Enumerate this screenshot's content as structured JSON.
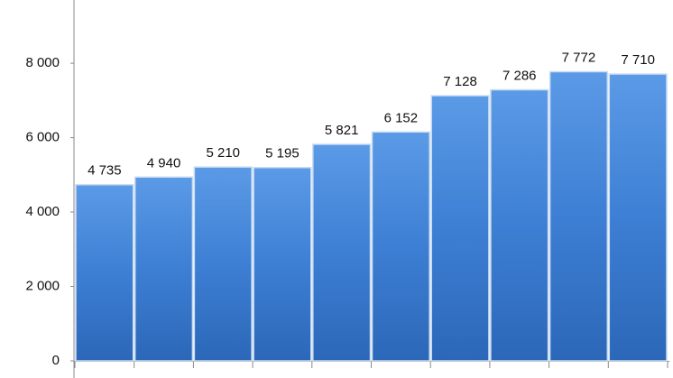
{
  "chart_data": {
    "type": "bar",
    "categories": [
      null,
      null,
      null,
      null,
      null,
      null,
      null,
      null,
      null,
      null
    ],
    "values": [
      4735,
      4940,
      5210,
      5195,
      5821,
      6152,
      7128,
      7286,
      7772,
      7710
    ],
    "value_labels": [
      "4 735",
      "4 940",
      "5 210",
      "5 195",
      "5 821",
      "6 152",
      "7 128",
      "7 286",
      "7 772",
      "7 710"
    ],
    "color": "#3d7fd4",
    "ylim": [
      0,
      9700
    ],
    "yticks": [
      0,
      {
        "value": 2000,
        "label": "2 000"
      },
      {
        "value": 4000,
        "label": "4 000"
      },
      {
        "value": 6000,
        "label": "6 000"
      },
      {
        "value": 8000,
        "label": "8 000"
      }
    ],
    "grid": false
  }
}
